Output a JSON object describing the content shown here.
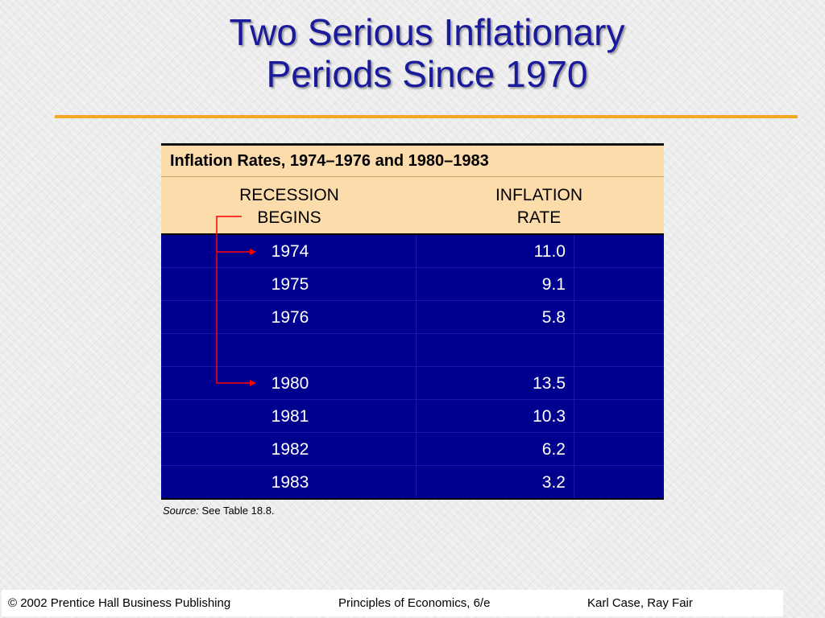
{
  "slide": {
    "title_line1": "Two Serious Inflationary",
    "title_line2": "Periods Since 1970"
  },
  "table": {
    "caption": "Inflation Rates, 1974–1976 and 1980–1983",
    "col1_header_line1": "RECESSION",
    "col1_header_line2": "BEGINS",
    "col2_header_line1": "INFLATION",
    "col2_header_line2": "RATE",
    "rows": [
      {
        "year": "1974",
        "rate": "11.0"
      },
      {
        "year": "1975",
        "rate": "9.1"
      },
      {
        "year": "1976",
        "rate": "5.8"
      },
      {
        "year": "",
        "rate": ""
      },
      {
        "year": "1980",
        "rate": "13.5"
      },
      {
        "year": "1981",
        "rate": "10.3"
      },
      {
        "year": "1982",
        "rate": "6.2"
      },
      {
        "year": "1983",
        "rate": "3.2"
      }
    ]
  },
  "source": {
    "label": "Source:",
    "text": "See Table 18.8."
  },
  "footer": {
    "copyright": "© 2002 Prentice Hall Business Publishing",
    "book": "Principles of Economics, 6/e",
    "authors": "Karl Case, Ray Fair"
  },
  "colors": {
    "title": "#1a1a9c",
    "rule": "#f5a623",
    "header_bg": "#fddcab",
    "body_bg": "#00008f",
    "arrow": "#ff0000"
  }
}
